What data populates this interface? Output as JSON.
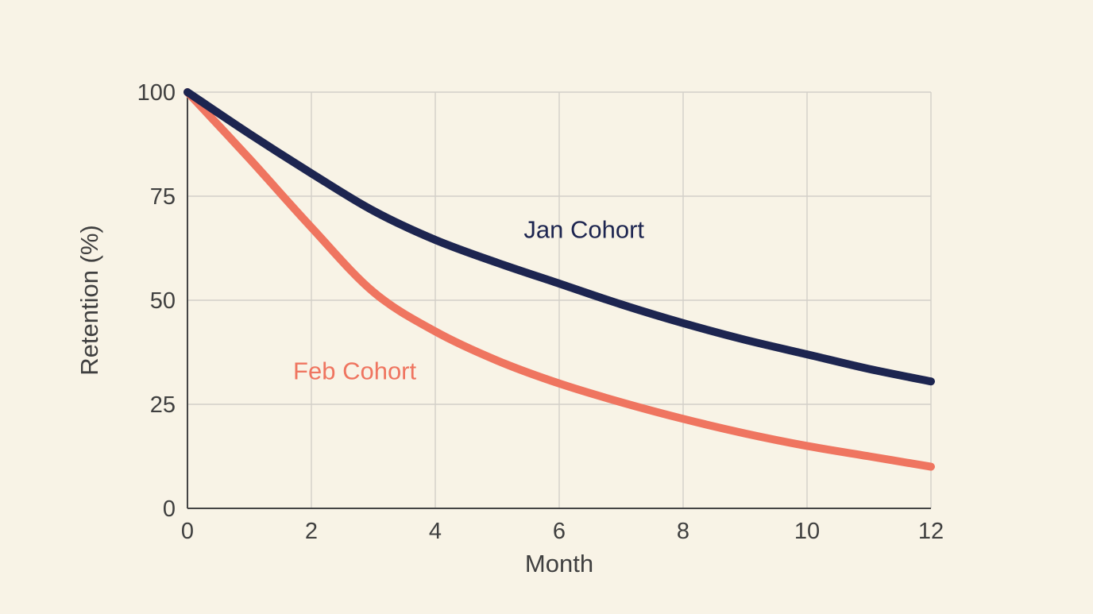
{
  "chart_data": {
    "type": "line",
    "title": "",
    "xlabel": "Month",
    "ylabel": "Retention (%)",
    "xlim": [
      0,
      12
    ],
    "ylim": [
      0,
      100
    ],
    "x_ticks": [
      "0",
      "2",
      "4",
      "6",
      "8",
      "10",
      "12"
    ],
    "y_ticks": [
      "0",
      "25",
      "50",
      "75",
      "100"
    ],
    "grid": true,
    "legend": "inline labels",
    "x": [
      0,
      1,
      2,
      3,
      4,
      5,
      6,
      7,
      8,
      9,
      10,
      11,
      12
    ],
    "series": [
      {
        "name": "Jan Cohort",
        "color": "#1d2550",
        "values": [
          100,
          90,
          80.5,
          71.5,
          64.5,
          59,
          54,
          49,
          44.5,
          40.5,
          37,
          33.5,
          30.5
        ]
      },
      {
        "name": "Feb Cohort",
        "color": "#ef7560",
        "values": [
          100,
          84,
          67.5,
          52,
          42.5,
          35.5,
          30,
          25.5,
          21.5,
          18,
          15,
          12.5,
          10
        ]
      }
    ]
  }
}
